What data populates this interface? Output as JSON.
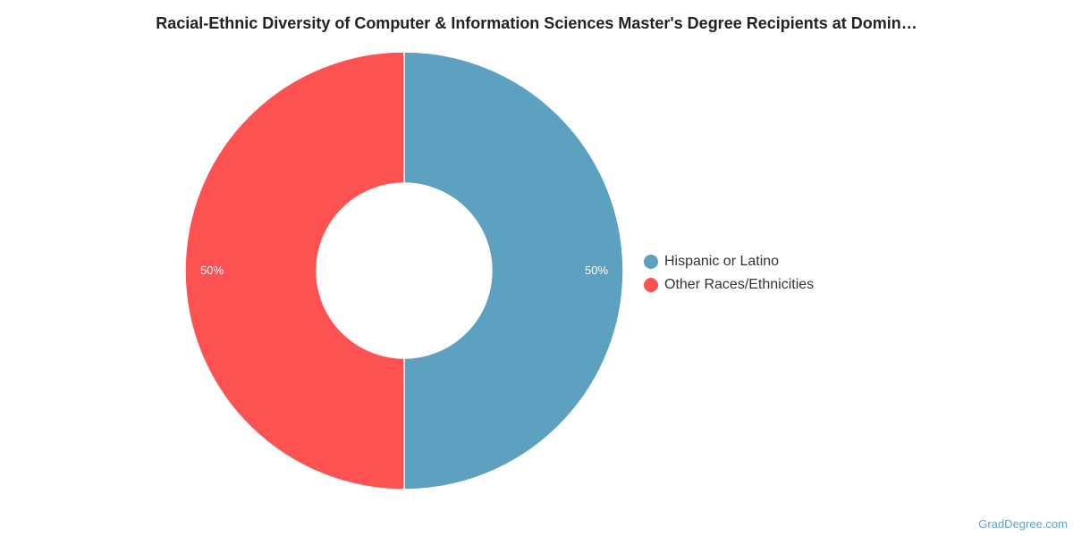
{
  "chart_data": {
    "type": "pie",
    "variant": "donut",
    "title": "Racial-Ethnic Diversity of Computer & Information Sciences Master's Degree Recipients at Domin…",
    "slices": [
      {
        "label": "Hispanic or Latino",
        "value": 50,
        "display": "50%",
        "color": "#5ca1bf"
      },
      {
        "label": "Other Races/Ethnicities",
        "value": 50,
        "display": "50%",
        "color": "#fe5152"
      }
    ],
    "legend_position": "right"
  },
  "source_label": "GradDegree.com"
}
